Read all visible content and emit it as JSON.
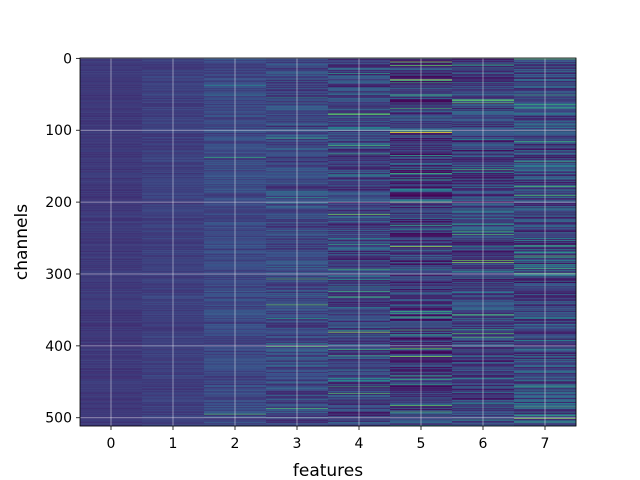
{
  "chart_data": {
    "type": "heatmap",
    "title": "",
    "xlabel": "features",
    "ylabel": "channels",
    "x_categories": [
      "0",
      "1",
      "2",
      "3",
      "4",
      "5",
      "6",
      "7"
    ],
    "y_ticks": [
      0,
      100,
      200,
      300,
      400,
      500
    ],
    "y_range": [
      0,
      511
    ],
    "rows": 512,
    "grid": true,
    "colormap": "viridis",
    "column_stats": [
      {
        "feature": "0",
        "mean": 0.17,
        "spread": 0.03,
        "spike_rate": 0.0
      },
      {
        "feature": "1",
        "mean": 0.19,
        "spread": 0.04,
        "spike_rate": 0.0
      },
      {
        "feature": "2",
        "mean": 0.22,
        "spread": 0.07,
        "spike_rate": 0.005
      },
      {
        "feature": "3",
        "mean": 0.22,
        "spread": 0.11,
        "spike_rate": 0.02
      },
      {
        "feature": "4",
        "mean": 0.2,
        "spread": 0.15,
        "spike_rate": 0.04
      },
      {
        "feature": "5",
        "mean": 0.17,
        "spread": 0.18,
        "spike_rate": 0.06
      },
      {
        "feature": "6",
        "mean": 0.2,
        "spread": 0.17,
        "spike_rate": 0.05
      },
      {
        "feature": "7",
        "mean": 0.22,
        "spread": 0.19,
        "spike_rate": 0.05
      }
    ],
    "highlights": [
      {
        "feature": "5",
        "channel": 103,
        "value": 1.0
      },
      {
        "feature": "5",
        "channel": 30,
        "value": 0.9
      },
      {
        "feature": "5",
        "channel": 262,
        "value": 0.85
      },
      {
        "feature": "6",
        "channel": 284,
        "value": 0.8
      },
      {
        "feature": "4",
        "channel": 78,
        "value": 0.75
      },
      {
        "feature": "7",
        "channel": 1,
        "value": 0.7
      }
    ]
  }
}
